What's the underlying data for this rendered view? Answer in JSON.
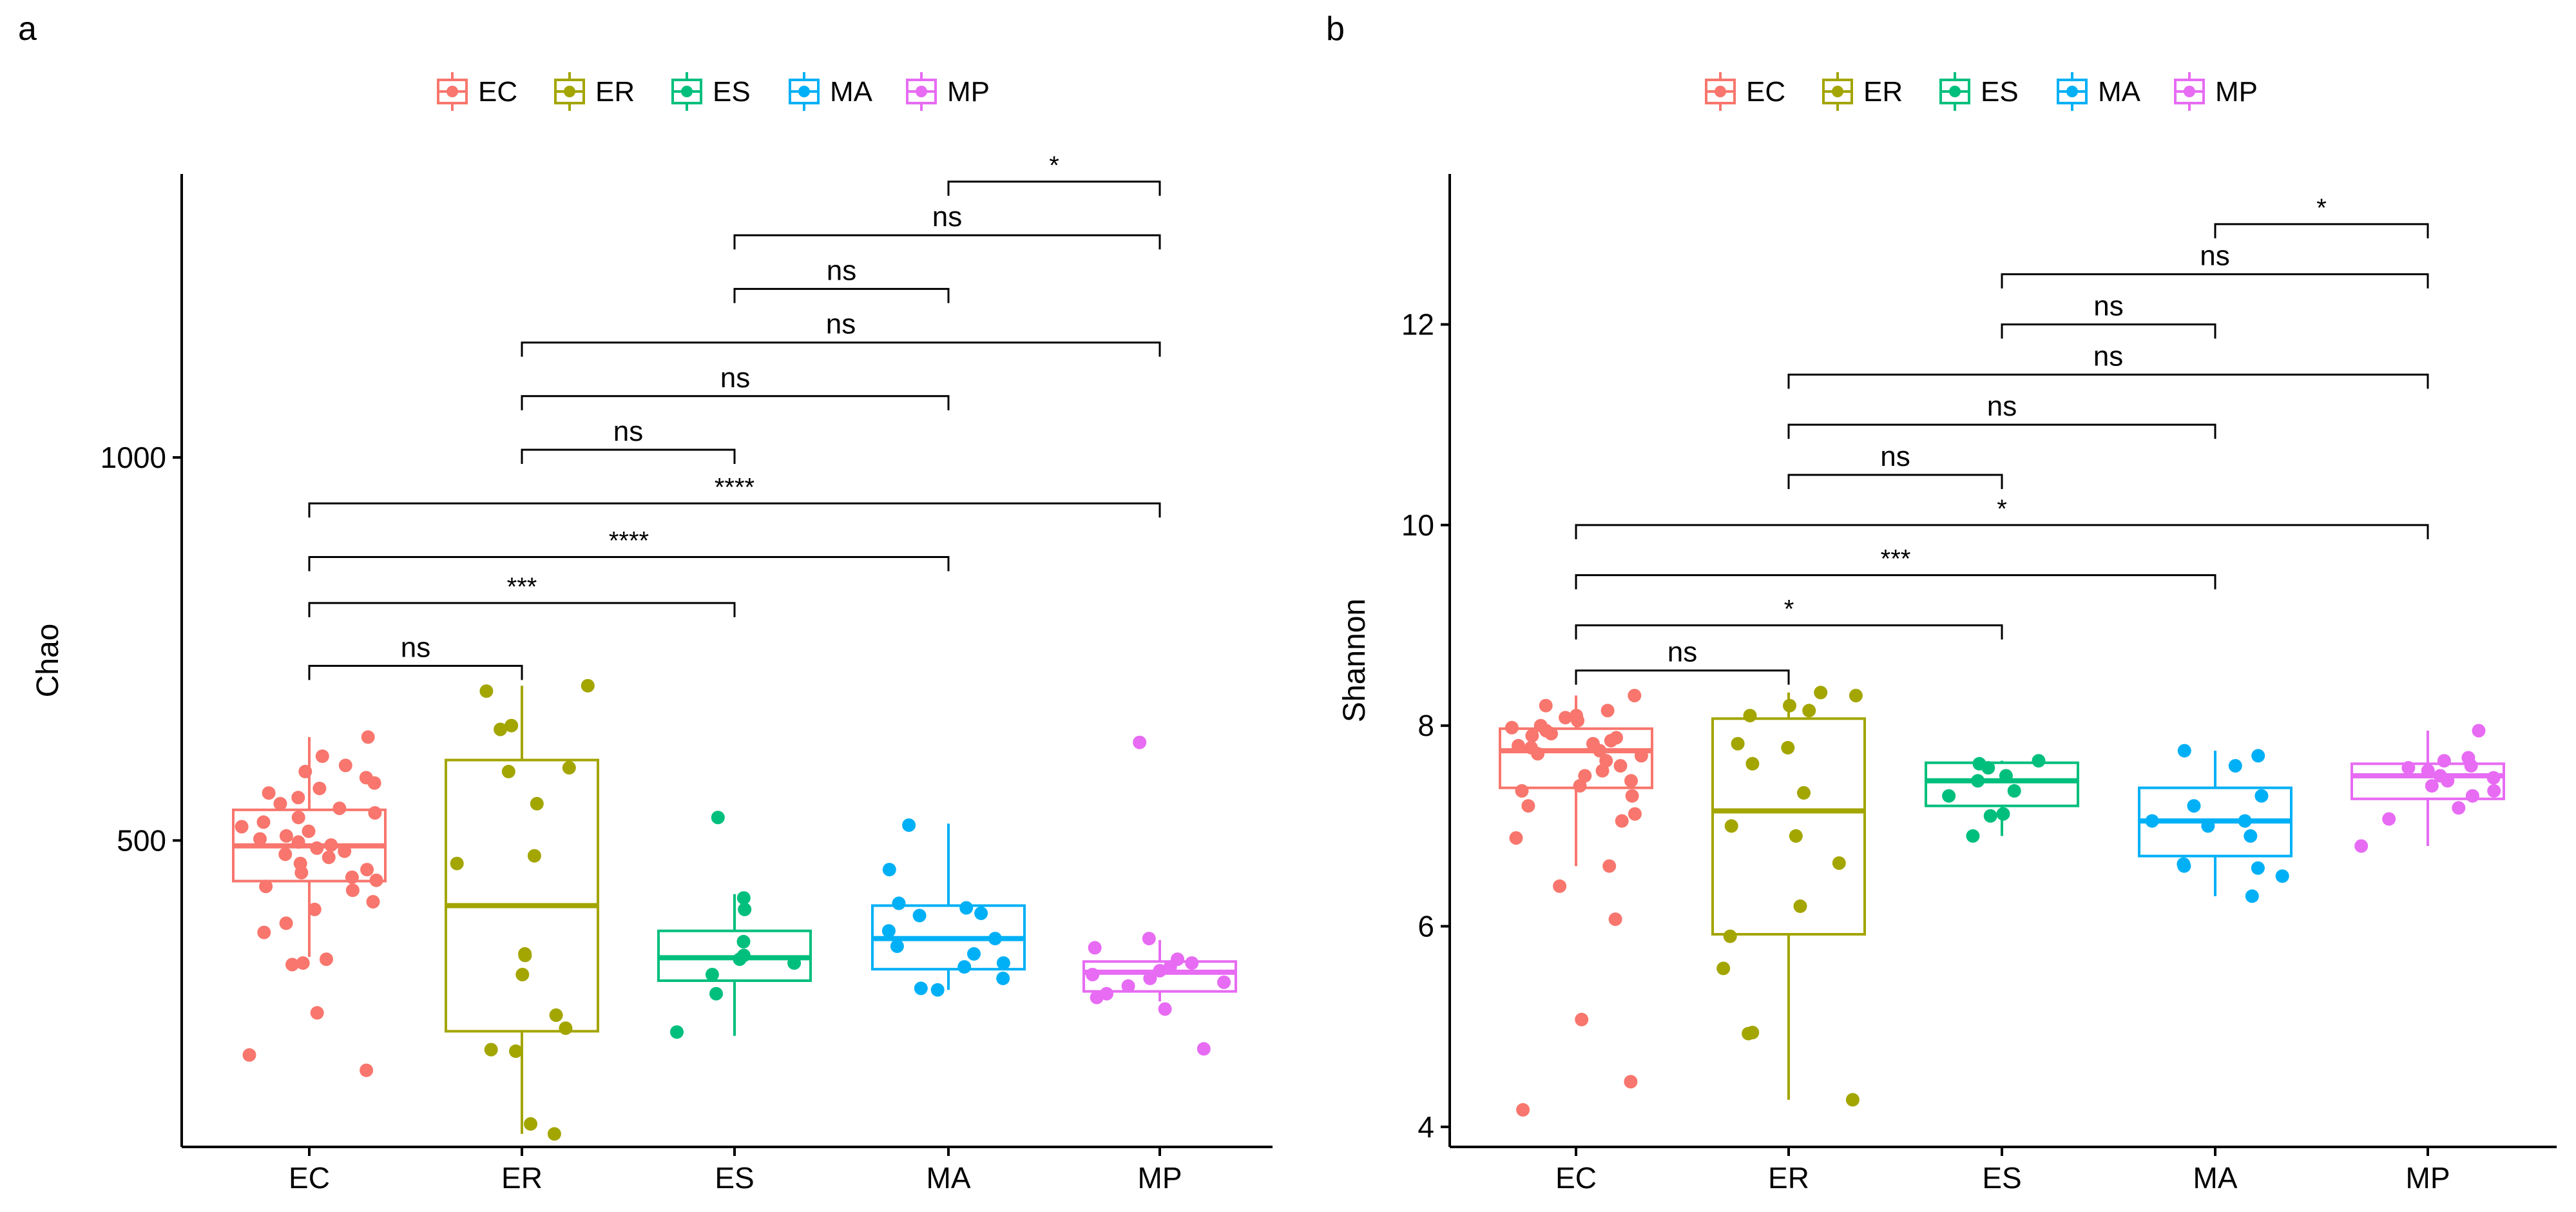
{
  "colors": {
    "EC": "#F8766D",
    "ER": "#A3A500",
    "ES": "#00BF7D",
    "MA": "#00B0F6",
    "MP": "#E76BF3",
    "axis": "#000000",
    "text": "#000000"
  },
  "chart_data": [
    {
      "panel": "a",
      "type": "box",
      "xlabel": "",
      "ylabel": "Chao",
      "categories": [
        "EC",
        "ER",
        "ES",
        "MA",
        "MP"
      ],
      "ylim": [
        100,
        1370
      ],
      "yticks": [
        500,
        1000
      ],
      "legend": {
        "position": "top",
        "entries": [
          "EC",
          "ER",
          "ES",
          "MA",
          "MP"
        ]
      },
      "boxes": [
        {
          "group": "EC",
          "lower_whisker": 348,
          "q1": 447,
          "median": 493,
          "q3": 540,
          "upper_whisker": 635
        },
        {
          "group": "ER",
          "lower_whisker": 117,
          "q1": 251,
          "median": 415,
          "q3": 605,
          "upper_whisker": 702
        },
        {
          "group": "ES",
          "lower_whisker": 245,
          "q1": 317,
          "median": 347,
          "q3": 382,
          "upper_whisker": 430
        },
        {
          "group": "MA",
          "lower_whisker": 305,
          "q1": 332,
          "median": 372,
          "q3": 415,
          "upper_whisker": 522
        },
        {
          "group": "MP",
          "lower_whisker": 290,
          "q1": 303,
          "median": 328,
          "q3": 342,
          "upper_whisker": 370
        }
      ],
      "points": {
        "EC": [
          200,
          220,
          275,
          338,
          340,
          345,
          380,
          392,
          410,
          420,
          435,
          440,
          448,
          452,
          458,
          462,
          470,
          478,
          482,
          486,
          490,
          494,
          498,
          502,
          506,
          512,
          518,
          524,
          530,
          536,
          542,
          548,
          556,
          562,
          568,
          575,
          582,
          590,
          598,
          610,
          635
        ],
        "ER": [
          117,
          130,
          225,
          227,
          255,
          272,
          325,
          350,
          352,
          470,
          480,
          548,
          590,
          595,
          645,
          650,
          695,
          702
        ],
        "ES": [
          250,
          300,
          325,
          340,
          345,
          350,
          368,
          410,
          425,
          530
        ],
        "MA": [
          305,
          307,
          320,
          335,
          340,
          352,
          362,
          372,
          382,
          402,
          405,
          412,
          418,
          462,
          520
        ],
        "MP": [
          228,
          280,
          295,
          300,
          310,
          315,
          320,
          325,
          330,
          335,
          340,
          345,
          360,
          372,
          628
        ]
      },
      "comparisons": [
        {
          "from": "EC",
          "to": "ER",
          "y": 728,
          "label": "ns"
        },
        {
          "from": "EC",
          "to": "ES",
          "y": 810,
          "label": "***"
        },
        {
          "from": "EC",
          "to": "MA",
          "y": 870,
          "label": "****"
        },
        {
          "from": "EC",
          "to": "MP",
          "y": 940,
          "label": "****"
        },
        {
          "from": "ER",
          "to": "ES",
          "y": 1010,
          "label": "ns"
        },
        {
          "from": "ER",
          "to": "MA",
          "y": 1080,
          "label": "ns"
        },
        {
          "from": "ER",
          "to": "MP",
          "y": 1150,
          "label": "ns"
        },
        {
          "from": "ES",
          "to": "MA",
          "y": 1220,
          "label": "ns"
        },
        {
          "from": "ES",
          "to": "MP",
          "y": 1290,
          "label": "ns"
        },
        {
          "from": "MA",
          "to": "MP",
          "y": 1360,
          "label": "*"
        }
      ]
    },
    {
      "panel": "b",
      "type": "box",
      "xlabel": "",
      "ylabel": "Shannon",
      "categories": [
        "EC",
        "ER",
        "ES",
        "MA",
        "MP"
      ],
      "ylim": [
        3.8,
        13.5
      ],
      "yticks": [
        4,
        6,
        8,
        10,
        12
      ],
      "legend": {
        "position": "top",
        "entries": [
          "EC",
          "ER",
          "ES",
          "MA",
          "MP"
        ]
      },
      "boxes": [
        {
          "group": "EC",
          "lower_whisker": 6.6,
          "q1": 7.38,
          "median": 7.75,
          "q3": 7.97,
          "upper_whisker": 8.3
        },
        {
          "group": "ER",
          "lower_whisker": 4.27,
          "q1": 5.92,
          "median": 7.15,
          "q3": 8.07,
          "upper_whisker": 8.33
        },
        {
          "group": "ES",
          "lower_whisker": 6.9,
          "q1": 7.2,
          "median": 7.45,
          "q3": 7.63,
          "upper_whisker": 7.65
        },
        {
          "group": "MA",
          "lower_whisker": 6.3,
          "q1": 6.7,
          "median": 7.05,
          "q3": 7.38,
          "upper_whisker": 7.75
        },
        {
          "group": "MP",
          "lower_whisker": 6.8,
          "q1": 7.27,
          "median": 7.5,
          "q3": 7.62,
          "upper_whisker": 7.95
        }
      ],
      "points": {
        "EC": [
          4.17,
          4.45,
          5.07,
          6.07,
          6.4,
          6.6,
          6.88,
          7.05,
          7.12,
          7.2,
          7.3,
          7.35,
          7.4,
          7.45,
          7.5,
          7.55,
          7.6,
          7.65,
          7.7,
          7.72,
          7.75,
          7.78,
          7.8,
          7.82,
          7.85,
          7.88,
          7.9,
          7.92,
          7.95,
          7.98,
          8.0,
          8.05,
          8.08,
          8.1,
          8.15,
          8.2,
          8.3
        ],
        "ER": [
          4.27,
          4.93,
          4.94,
          5.58,
          5.9,
          6.2,
          6.63,
          6.9,
          7.0,
          7.33,
          7.62,
          7.78,
          7.82,
          8.1,
          8.15,
          8.2,
          8.3,
          8.33
        ],
        "ES": [
          6.9,
          7.1,
          7.12,
          7.3,
          7.35,
          7.45,
          7.5,
          7.58,
          7.62,
          7.65
        ],
        "MA": [
          6.3,
          6.5,
          6.58,
          6.6,
          6.62,
          6.9,
          7.0,
          7.05,
          7.05,
          7.2,
          7.3,
          7.6,
          7.7,
          7.75
        ],
        "MP": [
          6.8,
          7.07,
          7.18,
          7.3,
          7.35,
          7.4,
          7.45,
          7.48,
          7.5,
          7.55,
          7.58,
          7.6,
          7.65,
          7.68,
          7.95
        ]
      },
      "comparisons": [
        {
          "from": "EC",
          "to": "ER",
          "y": 8.55,
          "label": "ns"
        },
        {
          "from": "EC",
          "to": "ES",
          "y": 9.0,
          "label": "*"
        },
        {
          "from": "EC",
          "to": "MA",
          "y": 9.5,
          "label": "***"
        },
        {
          "from": "EC",
          "to": "MP",
          "y": 10.0,
          "label": "*"
        },
        {
          "from": "ER",
          "to": "ES",
          "y": 10.5,
          "label": "ns"
        },
        {
          "from": "ER",
          "to": "MA",
          "y": 11.0,
          "label": "ns"
        },
        {
          "from": "ER",
          "to": "MP",
          "y": 11.5,
          "label": "ns"
        },
        {
          "from": "ES",
          "to": "MA",
          "y": 12.0,
          "label": "ns"
        },
        {
          "from": "ES",
          "to": "MP",
          "y": 12.5,
          "label": "ns"
        },
        {
          "from": "MA",
          "to": "MP",
          "y": 13.0,
          "label": "*"
        }
      ]
    }
  ]
}
